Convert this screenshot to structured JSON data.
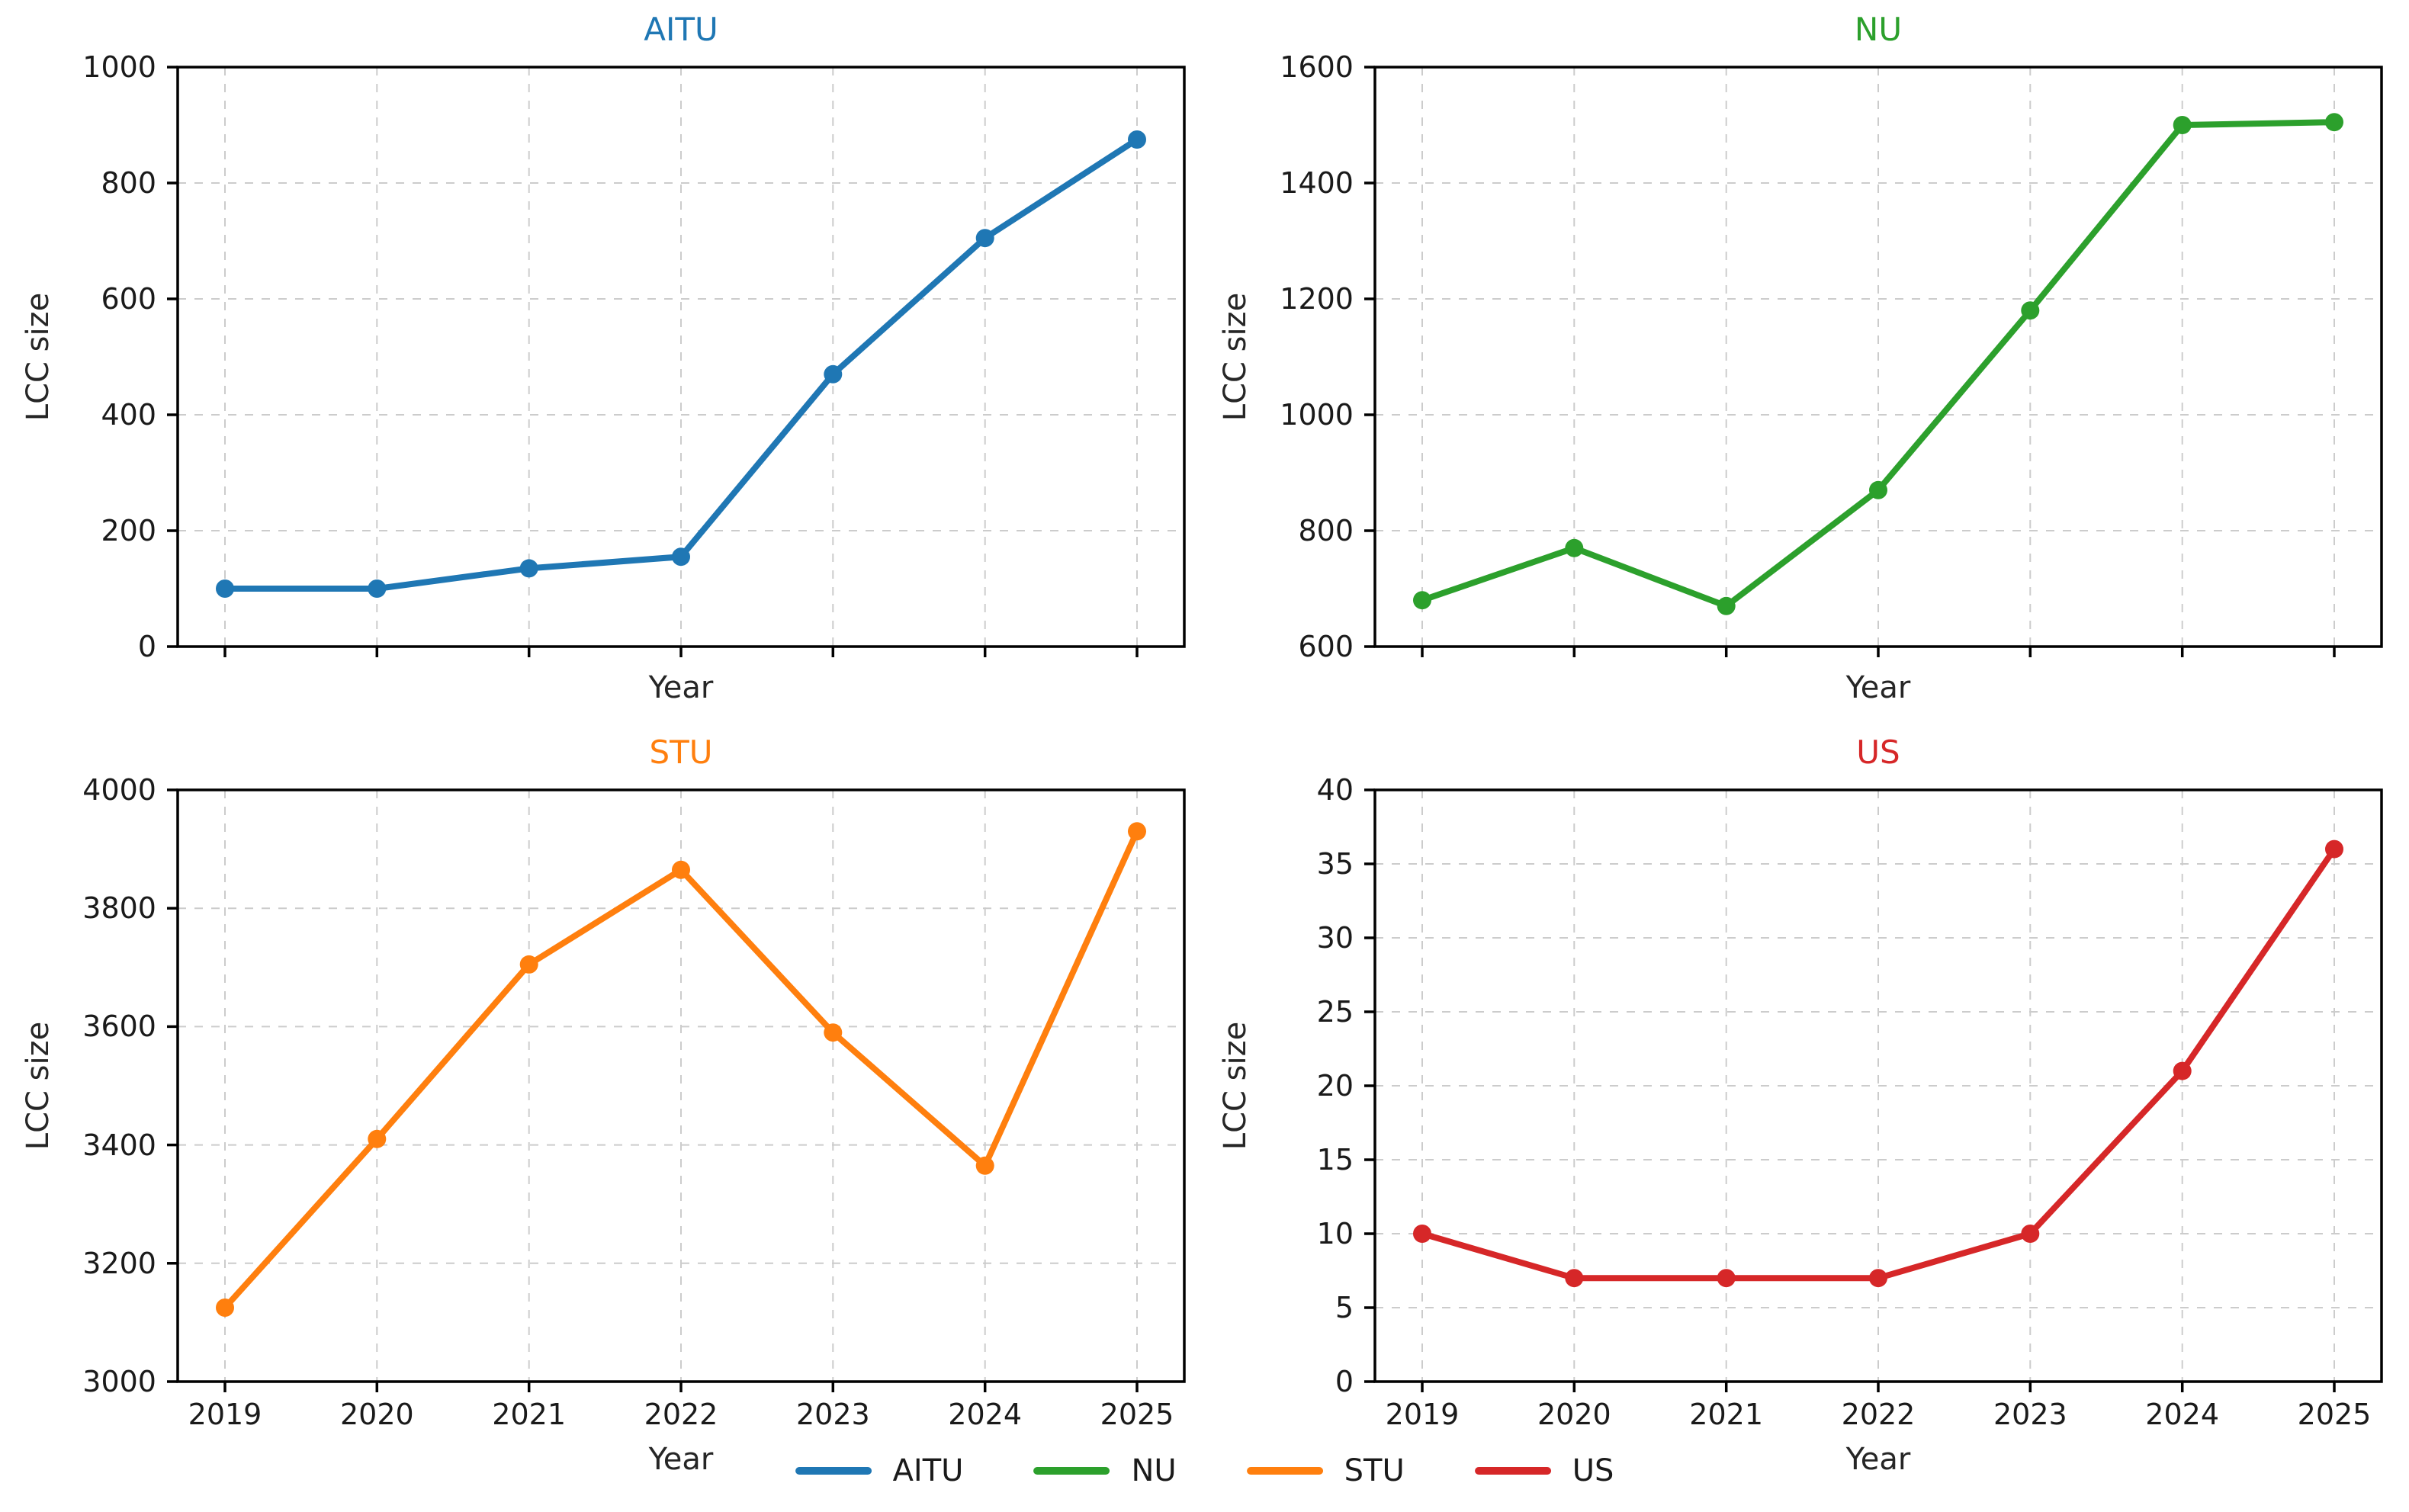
{
  "figure": {
    "ylabel_text": "LCC size",
    "xlabel_text": "Year"
  },
  "legend": {
    "items": [
      {
        "label": "AITU",
        "color": "#1f77b4"
      },
      {
        "label": "NU",
        "color": "#2ca02c"
      },
      {
        "label": "STU",
        "color": "#ff7f0e"
      },
      {
        "label": "US",
        "color": "#d62728"
      }
    ]
  },
  "chart_data": [
    {
      "type": "line",
      "id": "aitu",
      "title": "AITU",
      "color": "#1f77b4",
      "xlabel": "Year",
      "ylabel": "LCC size",
      "x": [
        2019,
        2020,
        2021,
        2022,
        2023,
        2024,
        2025
      ],
      "values": [
        100,
        100,
        135,
        155,
        470,
        705,
        875
      ],
      "ylim": [
        0,
        1000
      ],
      "yticks": [
        0,
        200,
        400,
        600,
        800,
        1000
      ],
      "show_x_tick_labels": false,
      "grid": true,
      "marker": "circle"
    },
    {
      "type": "line",
      "id": "nu",
      "title": "NU",
      "color": "#2ca02c",
      "xlabel": "Year",
      "ylabel": "LCC size",
      "x": [
        2019,
        2020,
        2021,
        2022,
        2023,
        2024,
        2025
      ],
      "values": [
        680,
        770,
        670,
        870,
        1180,
        1500,
        1505
      ],
      "ylim": [
        600,
        1600
      ],
      "yticks": [
        600,
        800,
        1000,
        1200,
        1400,
        1600
      ],
      "show_x_tick_labels": false,
      "grid": true,
      "marker": "circle"
    },
    {
      "type": "line",
      "id": "stu",
      "title": "STU",
      "color": "#ff7f0e",
      "xlabel": "Year",
      "ylabel": "LCC size",
      "x": [
        2019,
        2020,
        2021,
        2022,
        2023,
        2024,
        2025
      ],
      "values": [
        3125,
        3410,
        3705,
        3865,
        3590,
        3365,
        3930
      ],
      "ylim": [
        3000,
        4000
      ],
      "yticks": [
        3000,
        3200,
        3400,
        3600,
        3800,
        4000
      ],
      "show_x_tick_labels": true,
      "grid": true,
      "marker": "circle"
    },
    {
      "type": "line",
      "id": "us",
      "title": "US",
      "color": "#d62728",
      "xlabel": "Year",
      "ylabel": "LCC size",
      "x": [
        2019,
        2020,
        2021,
        2022,
        2023,
        2024,
        2025
      ],
      "values": [
        10,
        7,
        7,
        7,
        10,
        21,
        36
      ],
      "ylim": [
        0,
        40
      ],
      "yticks": [
        0,
        5,
        10,
        15,
        20,
        25,
        30,
        35,
        40
      ],
      "show_x_tick_labels": true,
      "grid": true,
      "marker": "circle"
    }
  ]
}
